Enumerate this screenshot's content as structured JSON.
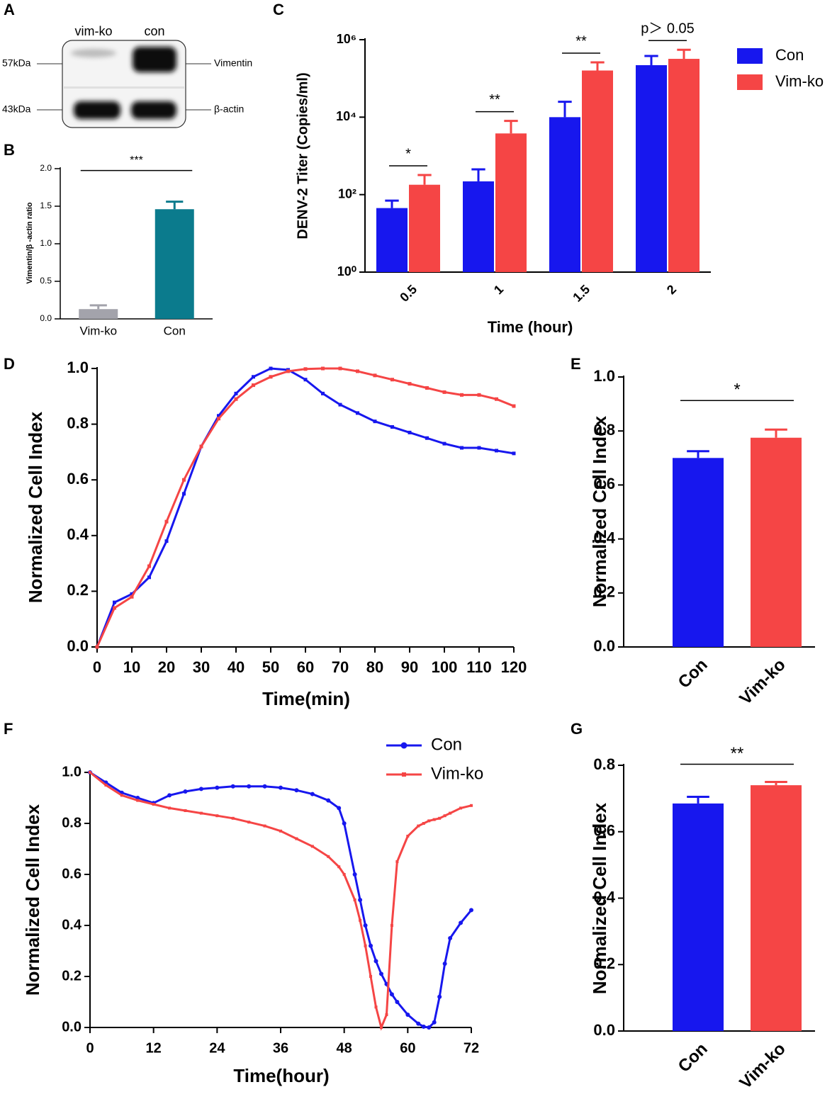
{
  "blot": {
    "panel": "A",
    "lanes": [
      "vim-ko",
      "con"
    ],
    "markers": [
      "57kDa",
      "43kDa"
    ],
    "proteins": [
      "Vimentin",
      "β-actin"
    ]
  },
  "chart_data": [
    {
      "type": "bar",
      "panel": "B",
      "ylabel": "Vimentin/β -actin ratio",
      "categories": [
        "Vim-ko",
        "Con"
      ],
      "values": [
        0.13,
        1.46
      ],
      "errors": [
        0.05,
        0.1
      ],
      "colors": [
        "#a3a3ab",
        "#0b7b8d"
      ],
      "ylim": [
        0,
        2.0
      ],
      "yticks": [
        {
          "value": 0,
          "label": "0.0"
        },
        {
          "value": 0.5,
          "label": "0.5"
        },
        {
          "value": 1.0,
          "label": "1.0"
        },
        {
          "value": 1.5,
          "label": "1.5"
        },
        {
          "value": 2.0,
          "label": "2.0"
        }
      ],
      "significance": "***"
    },
    {
      "type": "bar",
      "panel": "C",
      "ylabel": "DENV-2 Titer (Copies/ml)",
      "xlabel": "Time (hour)",
      "categories": [
        "0.5",
        "1",
        "1.5",
        "2"
      ],
      "log_scale": true,
      "legend": "top-right",
      "series": [
        {
          "name": "Con",
          "color": "#1717ee",
          "values": [
            45,
            220,
            10000,
            220000
          ],
          "errors": [
            25,
            230,
            15000,
            160000
          ]
        },
        {
          "name": "Vim-ko",
          "color": "#f54545",
          "values": [
            180,
            3800,
            160000,
            320000
          ],
          "errors": [
            140,
            4200,
            100000,
            230000
          ]
        }
      ],
      "ylim": [
        1,
        1000000
      ],
      "yticks": [
        {
          "value": 1,
          "label": "10⁰"
        },
        {
          "value": 100,
          "label": "10²"
        },
        {
          "value": 10000,
          "label": "10⁴"
        },
        {
          "value": 1000000,
          "label": "10⁶"
        }
      ],
      "annotations": [
        "*",
        "**",
        "**",
        "p＞ 0.05"
      ]
    },
    {
      "type": "line",
      "panel": "D",
      "ylabel": "Normalized Cell Index",
      "xlabel": "Time(min)",
      "x": [
        0,
        5,
        10,
        15,
        20,
        25,
        30,
        35,
        40,
        45,
        50,
        55,
        60,
        65,
        70,
        75,
        80,
        85,
        90,
        95,
        100,
        105,
        110,
        115,
        120
      ],
      "series": [
        {
          "color": "#1717ee",
          "marker": "square",
          "values": [
            0,
            0.16,
            0.19,
            0.25,
            0.38,
            0.55,
            0.72,
            0.83,
            0.91,
            0.97,
            1.0,
            0.995,
            0.96,
            0.91,
            0.87,
            0.84,
            0.81,
            0.79,
            0.77,
            0.75,
            0.73,
            0.715,
            0.715,
            0.705,
            0.695
          ]
        },
        {
          "color": "#f54545",
          "marker": "square",
          "values": [
            0,
            0.14,
            0.18,
            0.29,
            0.45,
            0.6,
            0.72,
            0.82,
            0.89,
            0.94,
            0.97,
            0.99,
            0.998,
            1.0,
            1.0,
            0.99,
            0.975,
            0.96,
            0.945,
            0.93,
            0.915,
            0.905,
            0.905,
            0.89,
            0.865
          ]
        }
      ],
      "xlim": [
        0,
        120
      ],
      "xticks": [
        0,
        10,
        20,
        30,
        40,
        50,
        60,
        70,
        80,
        90,
        100,
        110,
        120
      ],
      "ylim": [
        0,
        1.0
      ],
      "yticks": [
        {
          "value": 0,
          "label": "0.0"
        },
        {
          "value": 0.2,
          "label": "0.2"
        },
        {
          "value": 0.4,
          "label": "0.4"
        },
        {
          "value": 0.6,
          "label": "0.6"
        },
        {
          "value": 0.8,
          "label": "0.8"
        },
        {
          "value": 1.0,
          "label": "1.0"
        }
      ]
    },
    {
      "type": "bar",
      "panel": "E",
      "ylabel": "Normalized Cell Index",
      "categories": [
        "Con",
        "Vim-ko"
      ],
      "values": [
        0.7,
        0.775
      ],
      "errors": [
        0.025,
        0.03
      ],
      "colors": [
        "#1717ee",
        "#f54545"
      ],
      "ylim": [
        0,
        1.0
      ],
      "yticks": [
        {
          "value": 0,
          "label": "0.0"
        },
        {
          "value": 0.2,
          "label": "0.2"
        },
        {
          "value": 0.4,
          "label": "0.4"
        },
        {
          "value": 0.6,
          "label": "0.6"
        },
        {
          "value": 0.8,
          "label": "0.8"
        },
        {
          "value": 1.0,
          "label": "1.0"
        }
      ],
      "significance": "*"
    },
    {
      "type": "line",
      "panel": "F",
      "ylabel": "Normalized Cell Index",
      "xlabel": "Time(hour)",
      "legend": "top-right",
      "x": [
        0,
        3,
        6,
        9,
        12,
        15,
        18,
        21,
        24,
        27,
        30,
        33,
        36,
        39,
        42,
        45,
        47,
        48,
        50,
        51,
        52,
        53,
        54,
        55,
        56,
        57,
        58,
        60,
        62,
        63,
        64,
        65,
        66,
        67,
        68,
        70,
        72
      ],
      "series": [
        {
          "name": "Con",
          "color": "#1717ee",
          "marker": "circle",
          "values": [
            1.0,
            0.96,
            0.92,
            0.9,
            0.88,
            0.91,
            0.925,
            0.935,
            0.94,
            0.945,
            0.945,
            0.945,
            0.94,
            0.93,
            0.915,
            0.89,
            0.86,
            0.8,
            0.6,
            0.5,
            0.4,
            0.32,
            0.26,
            0.21,
            0.17,
            0.13,
            0.1,
            0.05,
            0.015,
            0.003,
            0,
            0.02,
            0.12,
            0.25,
            0.35,
            0.41,
            0.46
          ]
        },
        {
          "name": "Vim-ko",
          "color": "#f54545",
          "marker": "square",
          "values": [
            1.0,
            0.95,
            0.91,
            0.89,
            0.875,
            0.86,
            0.85,
            0.84,
            0.83,
            0.82,
            0.805,
            0.79,
            0.77,
            0.74,
            0.71,
            0.67,
            0.63,
            0.6,
            0.5,
            0.42,
            0.32,
            0.2,
            0.08,
            0,
            0.05,
            0.4,
            0.65,
            0.75,
            0.79,
            0.8,
            0.81,
            0.815,
            0.82,
            0.83,
            0.84,
            0.86,
            0.87
          ]
        }
      ],
      "xlim": [
        0,
        72
      ],
      "xticks": [
        0,
        12,
        24,
        36,
        48,
        60,
        72
      ],
      "ylim": [
        0,
        1.0
      ],
      "yticks": [
        {
          "value": 0,
          "label": "0.0"
        },
        {
          "value": 0.2,
          "label": "0.2"
        },
        {
          "value": 0.4,
          "label": "0.4"
        },
        {
          "value": 0.6,
          "label": "0.6"
        },
        {
          "value": 0.8,
          "label": "0.8"
        },
        {
          "value": 1.0,
          "label": "1.0"
        }
      ]
    },
    {
      "type": "bar",
      "panel": "G",
      "ylabel": "Normalized Cell Index",
      "categories": [
        "Con",
        "Vim-ko"
      ],
      "values": [
        0.685,
        0.74
      ],
      "errors": [
        0.02,
        0.01
      ],
      "colors": [
        "#1717ee",
        "#f54545"
      ],
      "ylim": [
        0,
        0.8
      ],
      "yticks": [
        {
          "value": 0,
          "label": "0.0"
        },
        {
          "value": 0.2,
          "label": "0.2"
        },
        {
          "value": 0.4,
          "label": "0.4"
        },
        {
          "value": 0.6,
          "label": "0.6"
        },
        {
          "value": 0.8,
          "label": "0.8"
        }
      ],
      "significance": "**"
    }
  ]
}
